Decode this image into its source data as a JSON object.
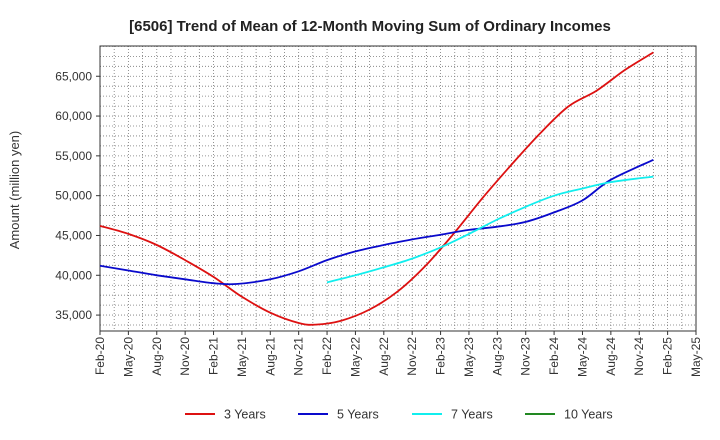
{
  "chart_data": {
    "type": "line",
    "title": "[6506]  Trend of Mean of 12-Month Moving Sum of Ordinary Incomes",
    "ylabel": "Amount (million yen)",
    "xlabel": "",
    "ylim": [
      33000,
      68800
    ],
    "yticks": [
      35000,
      40000,
      45000,
      50000,
      55000,
      60000,
      65000
    ],
    "ytick_labels": [
      "35,000",
      "40,000",
      "45,000",
      "50,000",
      "55,000",
      "60,000",
      "65,000"
    ],
    "xticks": [
      "Feb-20",
      "May-20",
      "Aug-20",
      "Nov-20",
      "Feb-21",
      "May-21",
      "Aug-21",
      "Nov-21",
      "Feb-22",
      "May-22",
      "Aug-22",
      "Nov-22",
      "Feb-23",
      "May-23",
      "Aug-23",
      "Nov-23",
      "Feb-24",
      "May-24",
      "Aug-24",
      "Nov-24",
      "Feb-25",
      "May-25"
    ],
    "series": [
      {
        "name": "3 Years",
        "color": "#dd1111",
        "points": [
          [
            0,
            46200
          ],
          [
            1,
            45200
          ],
          [
            2,
            43800
          ],
          [
            3,
            41900
          ],
          [
            4,
            39800
          ],
          [
            5,
            37300
          ],
          [
            6,
            35300
          ],
          [
            7,
            34000
          ],
          [
            7.6,
            33800
          ],
          [
            8.5,
            34300
          ],
          [
            9.5,
            35700
          ],
          [
            10.5,
            38000
          ],
          [
            11.5,
            41300
          ],
          [
            12.5,
            45400
          ],
          [
            13.5,
            49800
          ],
          [
            14.5,
            53900
          ],
          [
            15.5,
            57800
          ],
          [
            16.5,
            61200
          ],
          [
            17.5,
            63200
          ],
          [
            18.5,
            65800
          ],
          [
            19.5,
            68000
          ]
        ]
      },
      {
        "name": "5 Years",
        "color": "#0a0acc",
        "points": [
          [
            0,
            41200
          ],
          [
            1,
            40600
          ],
          [
            2,
            40000
          ],
          [
            3,
            39500
          ],
          [
            4,
            39000
          ],
          [
            4.8,
            38900
          ],
          [
            6,
            39500
          ],
          [
            7,
            40500
          ],
          [
            8,
            41900
          ],
          [
            9,
            43000
          ],
          [
            10,
            43800
          ],
          [
            11,
            44500
          ],
          [
            12,
            45100
          ],
          [
            13,
            45700
          ],
          [
            14,
            46100
          ],
          [
            15,
            46700
          ],
          [
            16,
            47900
          ],
          [
            17,
            49400
          ],
          [
            18,
            52000
          ],
          [
            19.5,
            54500
          ]
        ]
      },
      {
        "name": "7 Years",
        "color": "#11eeee",
        "points": [
          [
            8,
            39100
          ],
          [
            9,
            40000
          ],
          [
            10,
            41000
          ],
          [
            11,
            42100
          ],
          [
            12,
            43500
          ],
          [
            13,
            45200
          ],
          [
            14,
            47000
          ],
          [
            15,
            48600
          ],
          [
            16,
            50000
          ],
          [
            17,
            50900
          ],
          [
            18,
            51700
          ],
          [
            19.5,
            52400
          ]
        ]
      },
      {
        "name": "10 Years",
        "color": "#228822",
        "points": []
      }
    ]
  }
}
